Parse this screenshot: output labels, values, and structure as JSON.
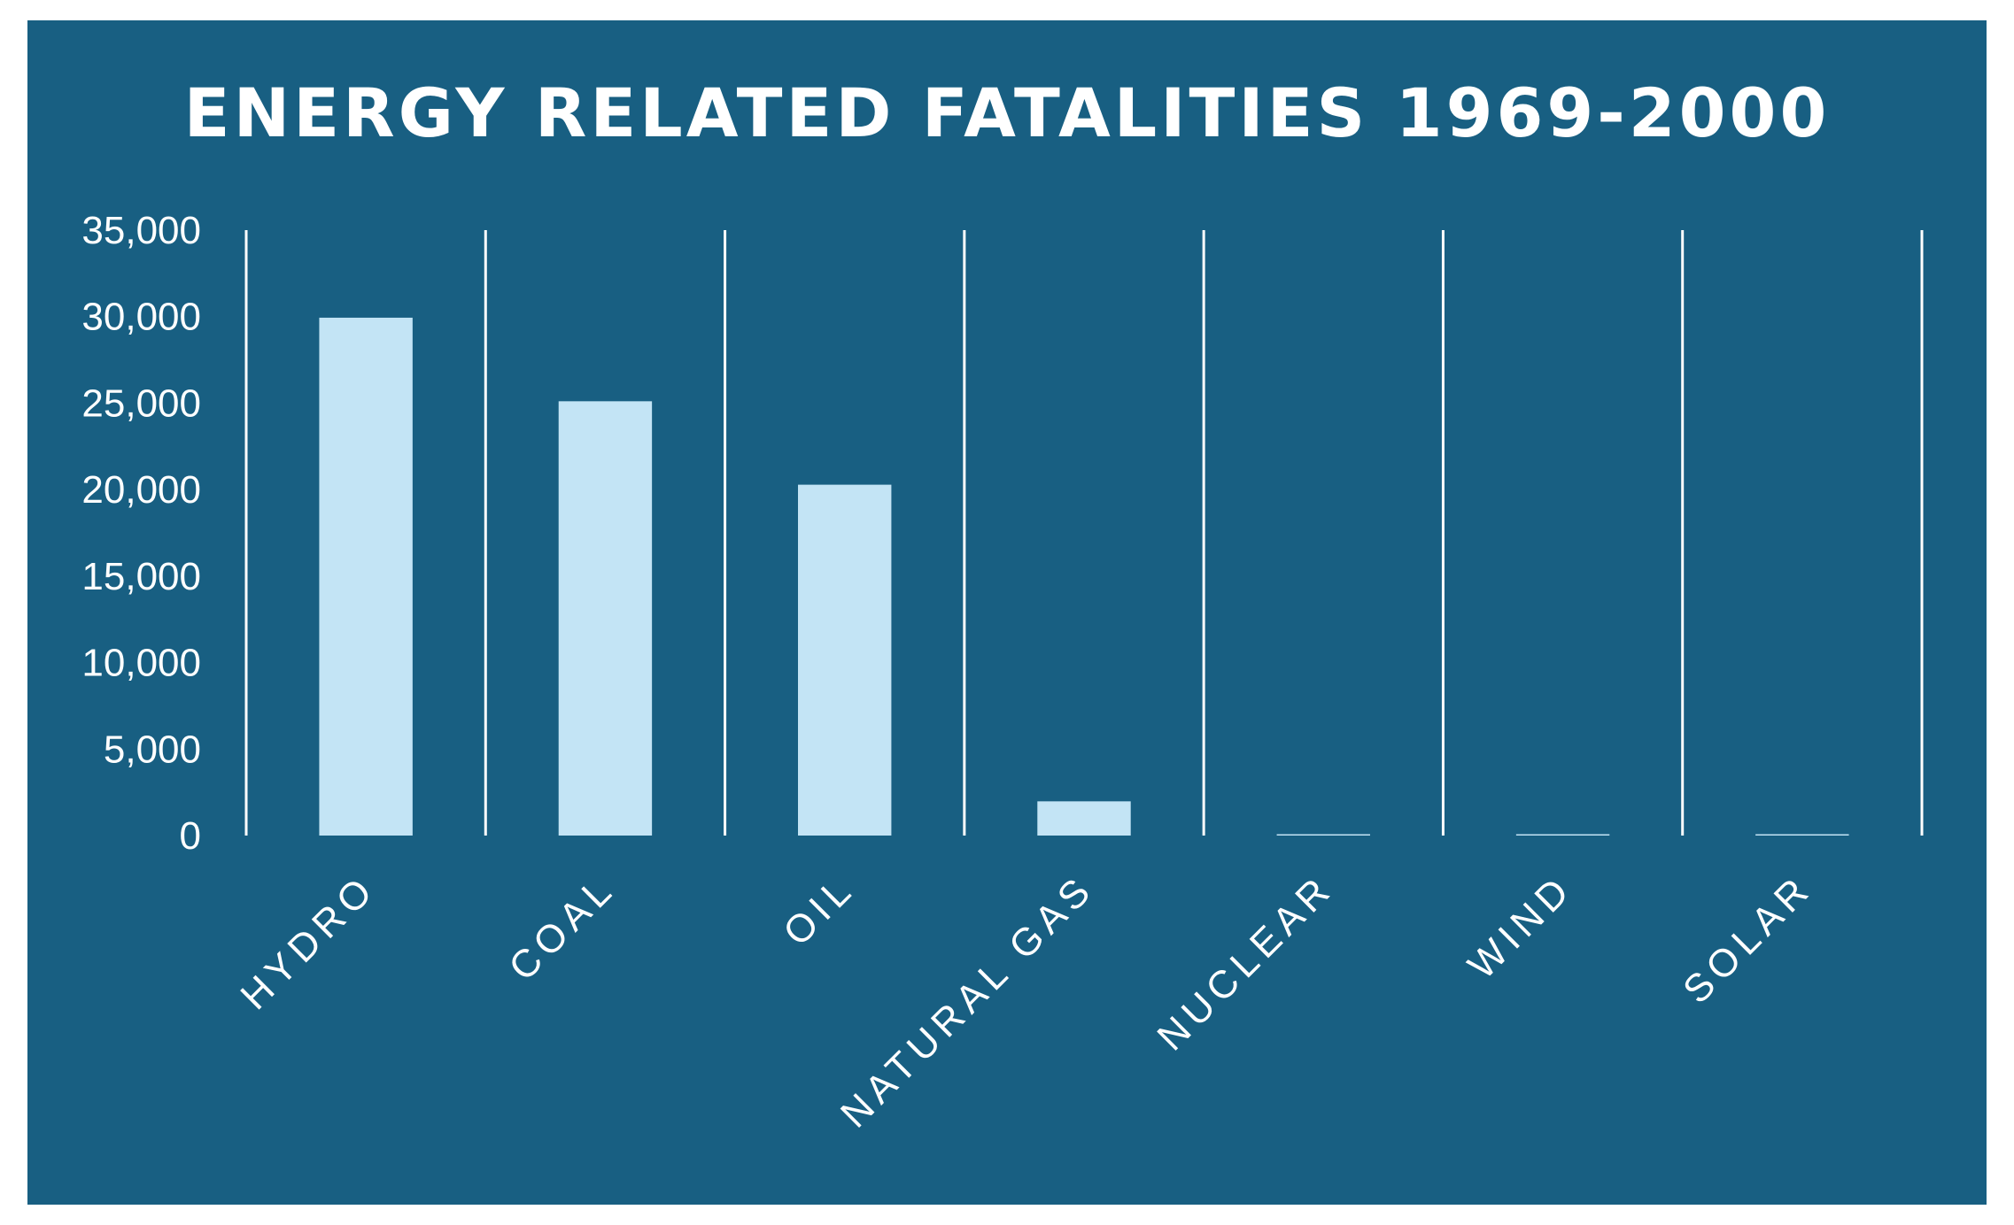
{
  "colors": {
    "background": "#185f82",
    "bar": "#c3e4f5",
    "text": "#ffffff",
    "gridline": "#ffffff"
  },
  "chart_data": {
    "type": "bar",
    "title": "ENERGY RELATED FATALITIES 1969-2000",
    "xlabel": "",
    "ylabel": "",
    "categories": [
      "HYDRO",
      "COAL",
      "OIL",
      "NATURAL GAS",
      "NUCLEAR",
      "WIND",
      "SOLAR"
    ],
    "values": [
      29938,
      25107,
      20283,
      1978,
      31,
      0,
      0
    ],
    "ylim": [
      0,
      35000
    ],
    "y_ticks": [
      0,
      5000,
      10000,
      15000,
      20000,
      25000,
      30000,
      35000
    ],
    "y_tick_labels": [
      "0",
      "5,000",
      "10,000",
      "15,000",
      "20,000",
      "25,000",
      "30,000",
      "35,000"
    ],
    "grid": "vertical separators between categories",
    "legend": "none"
  }
}
